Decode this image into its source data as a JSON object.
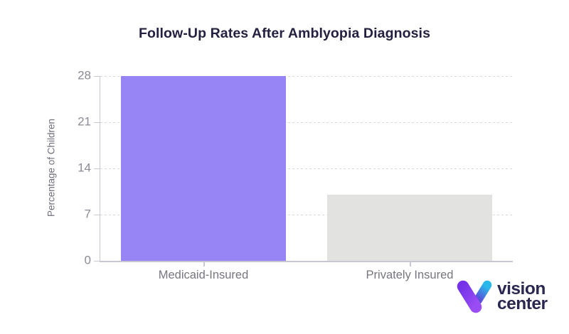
{
  "chart_data": {
    "type": "bar",
    "title": "Follow-Up Rates After Amblyopia Diagnosis",
    "xlabel": "",
    "ylabel": "Percentage of Children",
    "categories": [
      "Medicaid-Insured",
      "Privately Insured"
    ],
    "values": [
      28,
      10
    ],
    "bar_colors": [
      "#9885F5",
      "#E2E2E0"
    ],
    "yticks": [
      0,
      7,
      14,
      21,
      28
    ],
    "ylim": [
      0,
      28
    ],
    "grid": "horizontal dashed gridlines at each y tick, behind bars",
    "legend": "none"
  },
  "palette": {
    "axis_line": "#C7C7D3",
    "gridline": "#DADADA",
    "title_text": "#242140",
    "y_tick_text": "#8B8B97",
    "x_label_text": "#76767F",
    "y_axis_title_text": "#6F6F7D",
    "brand_navy": "#2A2750",
    "brand_violet_start": "#7433E8",
    "brand_violet_end": "#9B4DF5",
    "brand_cyan": "#2AB9EA",
    "brand_indigo": "#5B4FD8"
  },
  "brand": {
    "line1": "vision",
    "line2": "center",
    "icon": "v-checkmark-gradient-icon"
  }
}
